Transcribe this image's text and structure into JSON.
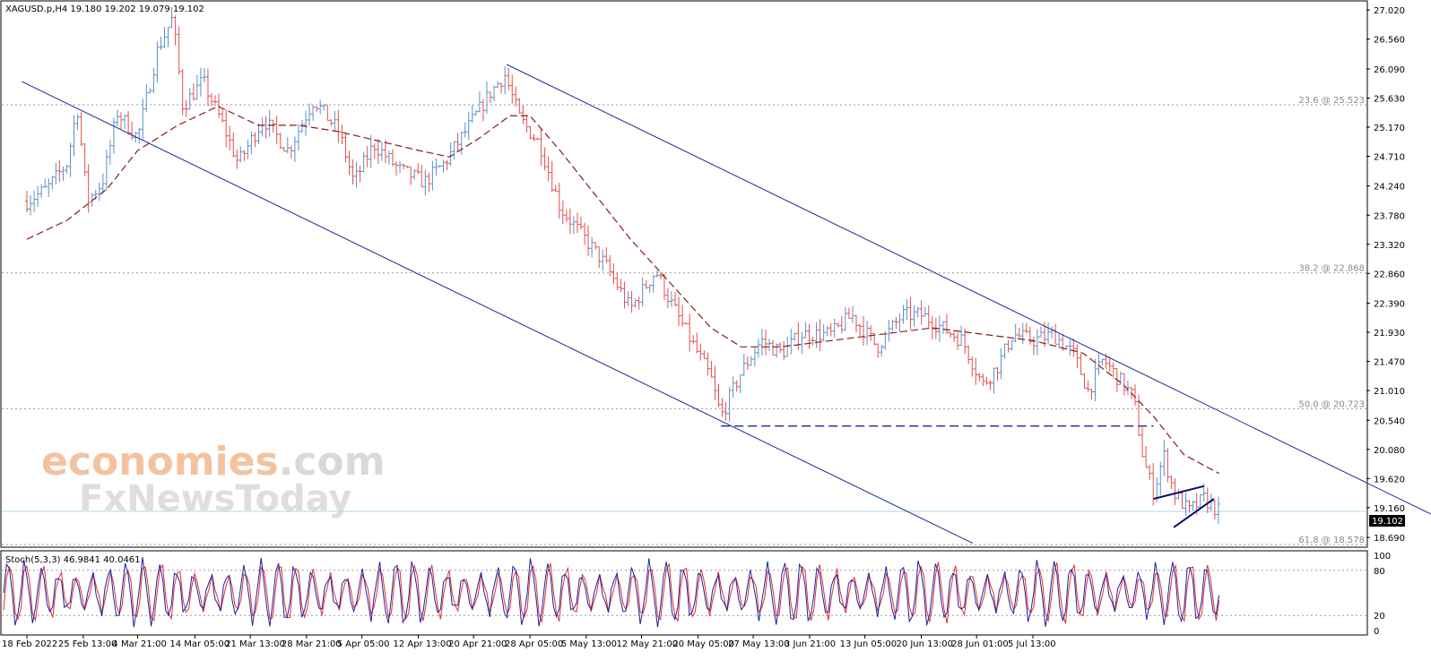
{
  "header": {
    "symbol_line": "XAGUSD.p,H4  19.180 19.202 19.079 19.102",
    "current_price": "19.102"
  },
  "stoch": {
    "label": "Stoch(5,3,3) 46.9841 40.0461",
    "main": 46.9841,
    "signal": 40.0461,
    "levels": [
      20,
      80
    ],
    "ticks": [
      "100",
      "80",
      "20",
      "0"
    ]
  },
  "watermark": {
    "line1_part1": "economies",
    "line1_part2": ".com",
    "line2": "FxNewsToday"
  },
  "chart_data": {
    "type": "candlestick",
    "symbol": "XAGUSD.p",
    "timeframe": "H4",
    "ohlc_last": {
      "open": 19.18,
      "high": 19.202,
      "low": 19.079,
      "close": 19.102
    },
    "ylim": [
      18.55,
      27.15
    ],
    "y_ticks": [
      "27.020",
      "26.560",
      "26.090",
      "25.630",
      "25.170",
      "24.710",
      "24.240",
      "23.780",
      "23.320",
      "22.860",
      "22.390",
      "21.930",
      "21.470",
      "21.010",
      "20.540",
      "20.080",
      "19.620",
      "19.160",
      "18.690"
    ],
    "x_ticks": [
      "18 Feb 2022",
      "25 Feb 13:00",
      "4 Mar 21:00",
      "14 Mar 05:00",
      "21 Mar 13:00",
      "28 Mar 21:00",
      "5 Apr 05:00",
      "12 Apr 13:00",
      "20 Apr 21:00",
      "28 Apr 05:00",
      "5 May 13:00",
      "12 May 21:00",
      "20 May 05:00",
      "27 May 13:00",
      "3 Jun 21:00",
      "13 Jun 05:00",
      "20 Jun 13:00",
      "28 Jun 01:00",
      "5 Jul 13:00"
    ],
    "x_tick_pos": [
      0,
      0.056,
      0.11,
      0.167,
      0.222,
      0.278,
      0.333,
      0.389,
      0.444,
      0.5,
      0.556,
      0.611,
      0.667,
      0.722,
      0.778,
      0.833,
      0.889,
      0.944,
      1.0
    ],
    "fibonacci": [
      {
        "label": "23.6 @ 25.523",
        "price": 25.523
      },
      {
        "label": "38.2 @ 22.868",
        "price": 22.868
      },
      {
        "label": "50.0 @ 20.723",
        "price": 20.723
      },
      {
        "label": "61.8 @ 18.578",
        "price": 18.578
      }
    ],
    "path": [
      [
        0,
        24.0
      ],
      [
        0.02,
        24.2
      ],
      [
        0.04,
        24.6
      ],
      [
        0.05,
        25.5
      ],
      [
        0.06,
        24.0
      ],
      [
        0.075,
        24.3
      ],
      [
        0.09,
        25.4
      ],
      [
        0.11,
        25.0
      ],
      [
        0.13,
        26.4
      ],
      [
        0.145,
        26.9
      ],
      [
        0.155,
        25.5
      ],
      [
        0.175,
        25.9
      ],
      [
        0.195,
        25.2
      ],
      [
        0.21,
        24.6
      ],
      [
        0.235,
        25.3
      ],
      [
        0.26,
        24.8
      ],
      [
        0.285,
        25.6
      ],
      [
        0.31,
        25.1
      ],
      [
        0.325,
        24.3
      ],
      [
        0.345,
        24.9
      ],
      [
        0.37,
        24.5
      ],
      [
        0.395,
        24.3
      ],
      [
        0.415,
        24.6
      ],
      [
        0.44,
        25.2
      ],
      [
        0.46,
        25.7
      ],
      [
        0.475,
        26.0
      ],
      [
        0.49,
        25.3
      ],
      [
        0.51,
        24.9
      ],
      [
        0.53,
        23.9
      ],
      [
        0.55,
        23.5
      ],
      [
        0.575,
        23.0
      ],
      [
        0.6,
        22.3
      ],
      [
        0.625,
        22.9
      ],
      [
        0.64,
        22.4
      ],
      [
        0.66,
        21.8
      ],
      [
        0.68,
        21.2
      ],
      [
        0.69,
        20.6
      ],
      [
        0.71,
        21.3
      ],
      [
        0.73,
        21.8
      ],
      [
        0.75,
        21.6
      ],
      [
        0.77,
        21.9
      ],
      [
        0.8,
        21.9
      ],
      [
        0.82,
        22.2
      ],
      [
        0.845,
        21.7
      ],
      [
        0.87,
        22.2
      ],
      [
        0.89,
        22.2
      ],
      [
        0.91,
        22.0
      ],
      [
        0.93,
        21.8
      ],
      [
        0.95,
        21.1
      ],
      [
        0.965,
        21.4
      ],
      [
        0.98,
        21.9
      ],
      [
        1.0,
        21.8
      ],
      [
        1.02,
        21.9
      ],
      [
        1.04,
        21.6
      ],
      [
        1.055,
        21.0
      ],
      [
        1.07,
        21.5
      ],
      [
        1.085,
        21.2
      ],
      [
        1.1,
        20.9
      ],
      [
        1.11,
        19.9
      ],
      [
        1.12,
        19.4
      ],
      [
        1.13,
        20.0
      ],
      [
        1.14,
        19.4
      ],
      [
        1.155,
        19.1
      ],
      [
        1.17,
        19.3
      ],
      [
        1.185,
        19.1
      ]
    ],
    "ma_path": [
      [
        0,
        23.4
      ],
      [
        0.04,
        23.7
      ],
      [
        0.08,
        24.2
      ],
      [
        0.11,
        24.8
      ],
      [
        0.15,
        25.2
      ],
      [
        0.19,
        25.5
      ],
      [
        0.23,
        25.2
      ],
      [
        0.27,
        25.2
      ],
      [
        0.31,
        25.1
      ],
      [
        0.35,
        24.95
      ],
      [
        0.39,
        24.8
      ],
      [
        0.42,
        24.7
      ],
      [
        0.45,
        25.0
      ],
      [
        0.48,
        25.35
      ],
      [
        0.5,
        25.35
      ],
      [
        0.53,
        24.8
      ],
      [
        0.56,
        24.2
      ],
      [
        0.6,
        23.4
      ],
      [
        0.64,
        22.7
      ],
      [
        0.68,
        22.0
      ],
      [
        0.71,
        21.7
      ],
      [
        0.75,
        21.7
      ],
      [
        0.8,
        21.8
      ],
      [
        0.85,
        21.9
      ],
      [
        0.9,
        22.0
      ],
      [
        0.95,
        21.9
      ],
      [
        1.0,
        21.8
      ],
      [
        1.05,
        21.6
      ],
      [
        1.09,
        21.1
      ],
      [
        1.12,
        20.6
      ],
      [
        1.15,
        20.0
      ],
      [
        1.185,
        19.7
      ]
    ],
    "channel_lower": [
      [
        -0.005,
        25.89
      ],
      [
        0.94,
        18.6
      ]
    ],
    "channel_upper": [
      [
        0.477,
        26.16
      ],
      [
        1.455,
        18.6
      ]
    ],
    "support_level": {
      "price": 20.45,
      "x_start": 0.69,
      "x_end": 1.12
    },
    "wedge_upper": [
      [
        1.12,
        19.3
      ],
      [
        1.17,
        19.5
      ]
    ],
    "wedge_lower": [
      [
        1.14,
        18.85
      ],
      [
        1.18,
        19.3
      ]
    ],
    "stoch_cycles": 72
  }
}
